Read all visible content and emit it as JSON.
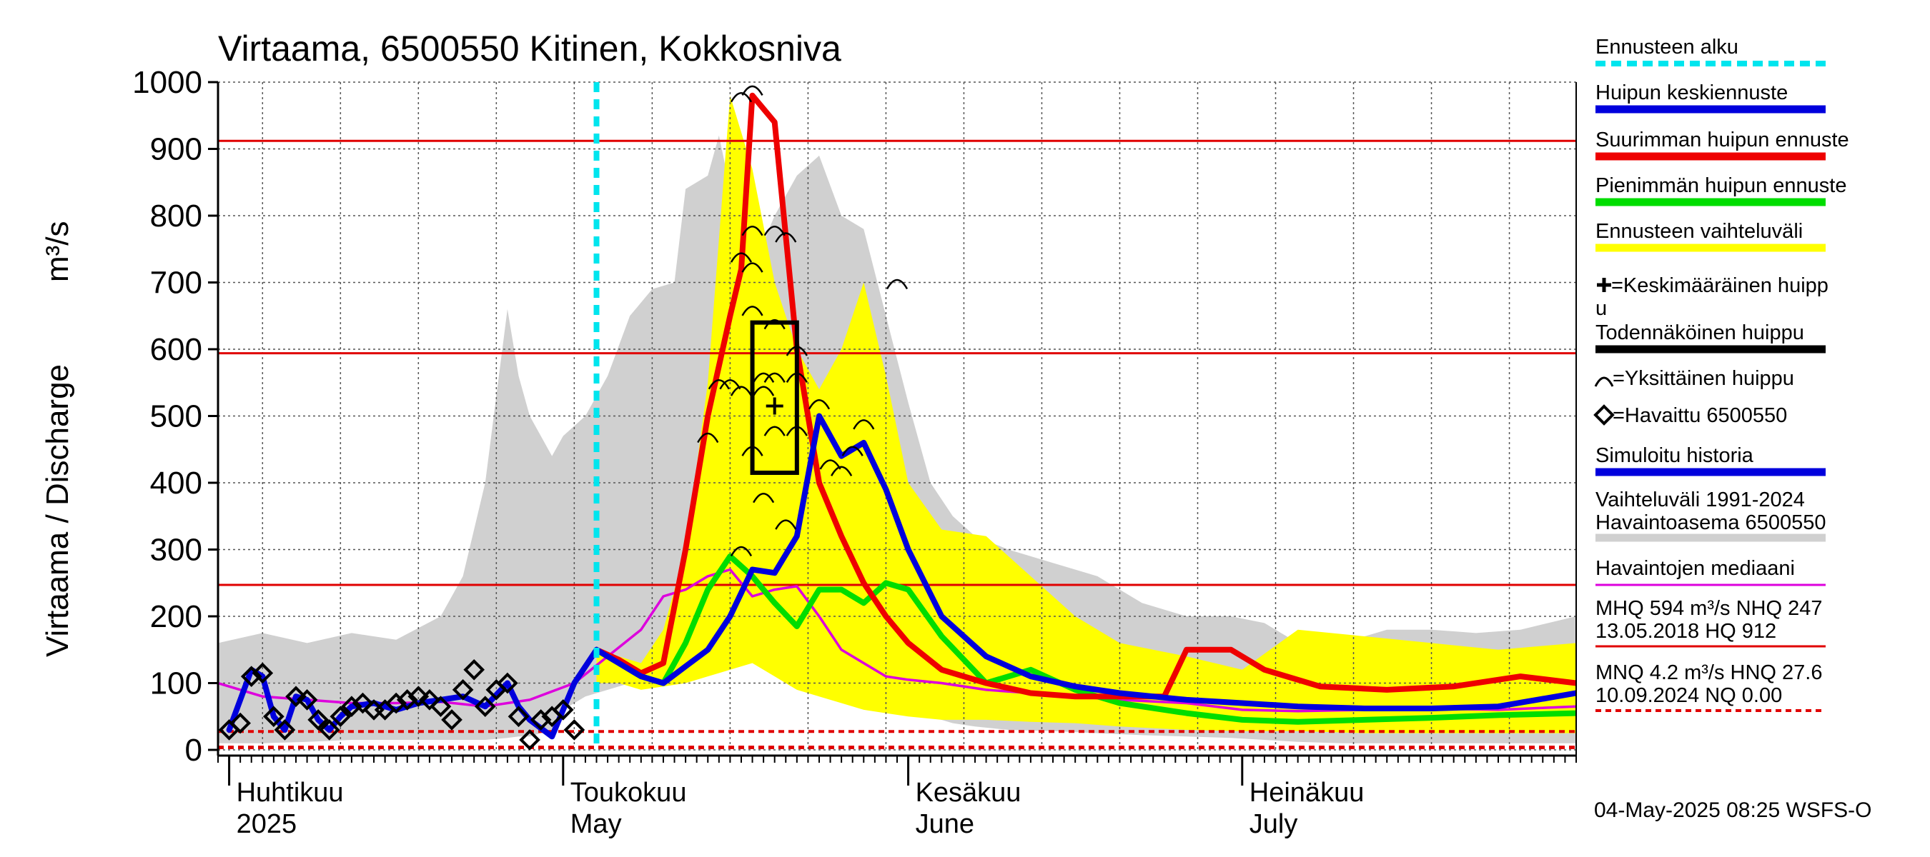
{
  "chart_data": {
    "type": "line",
    "title": "Virtaama, 6500550 Kitinen, Kokkosniva",
    "ylabel": "Virtaama / Discharge",
    "yunit": "m³/s",
    "ylim": [
      0,
      1000
    ],
    "yticks": [
      0,
      100,
      200,
      300,
      400,
      500,
      600,
      700,
      800,
      900,
      1000
    ],
    "xlim": [
      "2025-03-31",
      "2025-07-31"
    ],
    "grid": true,
    "legend_position": "right",
    "month_labels": [
      {
        "date": "2025-04-01",
        "fi": "Huhtikuu",
        "en": "2025"
      },
      {
        "date": "2025-05-01",
        "fi": "Toukokuu",
        "en": "May"
      },
      {
        "date": "2025-06-01",
        "fi": "Kesäkuu",
        "en": "June"
      },
      {
        "date": "2025-07-01",
        "fi": "Heinäkuu",
        "en": "July"
      }
    ],
    "forecast_start": "2025-05-04",
    "reference_lines": [
      {
        "label": "HQ",
        "value": 912,
        "style": "solid",
        "color": "#e00000"
      },
      {
        "label": "MHQ",
        "value": 594,
        "style": "solid",
        "color": "#e00000"
      },
      {
        "label": "NHQ",
        "value": 247,
        "style": "solid",
        "color": "#e00000"
      },
      {
        "label": "HNQ",
        "value": 27.6,
        "style": "dashed",
        "color": "#e00000"
      },
      {
        "label": "MNQ",
        "value": 4.2,
        "style": "dashed",
        "color": "#e00000"
      },
      {
        "label": "NQ",
        "value": 0,
        "style": "dashed",
        "color": "#e00000"
      }
    ],
    "history_band": {
      "name": "Vaihteluväli 1991-2024 Havaintoasema 6500550",
      "color": "#d0d0d0",
      "x": [
        "2025-03-31",
        "2025-04-04",
        "2025-04-08",
        "2025-04-12",
        "2025-04-16",
        "2025-04-20",
        "2025-04-22",
        "2025-04-24",
        "2025-04-26",
        "2025-04-27",
        "2025-04-28",
        "2025-04-30",
        "2025-05-01",
        "2025-05-03",
        "2025-05-05",
        "2025-05-07",
        "2025-05-09",
        "2025-05-11",
        "2025-05-12",
        "2025-05-14",
        "2025-05-15",
        "2025-05-17",
        "2025-05-18",
        "2025-05-20",
        "2025-05-22",
        "2025-05-24",
        "2025-05-26",
        "2025-05-28",
        "2025-05-30",
        "2025-06-01",
        "2025-06-03",
        "2025-06-05",
        "2025-06-07",
        "2025-06-10",
        "2025-06-14",
        "2025-06-18",
        "2025-06-22",
        "2025-06-26",
        "2025-06-30",
        "2025-07-03",
        "2025-07-06",
        "2025-07-10",
        "2025-07-14",
        "2025-07-18",
        "2025-07-22",
        "2025-07-26",
        "2025-07-31"
      ],
      "upper": [
        160,
        175,
        160,
        175,
        165,
        200,
        260,
        400,
        660,
        560,
        500,
        440,
        470,
        500,
        560,
        650,
        690,
        700,
        840,
        860,
        920,
        760,
        720,
        800,
        860,
        890,
        800,
        780,
        650,
        520,
        400,
        350,
        320,
        300,
        280,
        260,
        220,
        200,
        200,
        190,
        160,
        160,
        180,
        180,
        175,
        180,
        200
      ],
      "lower": [
        10,
        10,
        12,
        15,
        15,
        15,
        15,
        15,
        18,
        20,
        20,
        30,
        60,
        80,
        90,
        100,
        110,
        105,
        120,
        130,
        150,
        160,
        150,
        140,
        130,
        110,
        90,
        80,
        70,
        60,
        50,
        40,
        35,
        30,
        28,
        25,
        22,
        20,
        18,
        15,
        12,
        10,
        10,
        10,
        10,
        10,
        10
      ]
    },
    "forecast_band": {
      "name": "Ennusteen vaihteluväli",
      "color": "#ffff00",
      "x": [
        "2025-05-04",
        "2025-05-06",
        "2025-05-08",
        "2025-05-10",
        "2025-05-12",
        "2025-05-14",
        "2025-05-16",
        "2025-05-18",
        "2025-05-20",
        "2025-05-22",
        "2025-05-24",
        "2025-05-26",
        "2025-05-28",
        "2025-05-30",
        "2025-06-01",
        "2025-06-04",
        "2025-06-08",
        "2025-06-12",
        "2025-06-16",
        "2025-06-20",
        "2025-06-26",
        "2025-07-01",
        "2025-07-06",
        "2025-07-12",
        "2025-07-18",
        "2025-07-24",
        "2025-07-31"
      ],
      "upper": [
        150,
        140,
        130,
        180,
        300,
        550,
        980,
        870,
        700,
        600,
        540,
        600,
        700,
        560,
        400,
        330,
        320,
        260,
        200,
        160,
        140,
        120,
        180,
        170,
        160,
        150,
        160
      ],
      "lower": [
        100,
        100,
        90,
        95,
        100,
        110,
        120,
        130,
        110,
        90,
        80,
        70,
        60,
        55,
        50,
        45,
        45,
        42,
        40,
        35,
        30,
        28,
        28,
        25,
        25,
        25,
        25
      ]
    },
    "series": [
      {
        "name": "Huipun keskiennuste",
        "color": "#0000dd",
        "x": [
          "2025-05-04",
          "2025-05-06",
          "2025-05-08",
          "2025-05-10",
          "2025-05-12",
          "2025-05-14",
          "2025-05-16",
          "2025-05-18",
          "2025-05-20",
          "2025-05-22",
          "2025-05-24",
          "2025-05-26",
          "2025-05-28",
          "2025-05-30",
          "2025-06-01",
          "2025-06-04",
          "2025-06-08",
          "2025-06-12",
          "2025-06-16",
          "2025-06-20",
          "2025-06-26",
          "2025-07-01",
          "2025-07-06",
          "2025-07-12",
          "2025-07-18",
          "2025-07-24",
          "2025-07-31"
        ],
        "values": [
          150,
          130,
          110,
          100,
          125,
          150,
          200,
          270,
          265,
          320,
          500,
          440,
          460,
          390,
          300,
          200,
          140,
          110,
          95,
          85,
          75,
          70,
          65,
          62,
          62,
          65,
          85
        ]
      },
      {
        "name": "Suurimman huipun ennuste",
        "color": "#ee0000",
        "x": [
          "2025-05-04",
          "2025-05-06",
          "2025-05-08",
          "2025-05-10",
          "2025-05-12",
          "2025-05-14",
          "2025-05-16",
          "2025-05-17",
          "2025-05-18",
          "2025-05-20",
          "2025-05-22",
          "2025-05-24",
          "2025-05-26",
          "2025-05-28",
          "2025-05-30",
          "2025-06-01",
          "2025-06-04",
          "2025-06-08",
          "2025-06-12",
          "2025-06-16",
          "2025-06-20",
          "2025-06-24",
          "2025-06-26",
          "2025-06-30",
          "2025-07-03",
          "2025-07-08",
          "2025-07-14",
          "2025-07-20",
          "2025-07-26",
          "2025-07-31"
        ],
        "values": [
          150,
          135,
          115,
          130,
          300,
          500,
          650,
          720,
          980,
          940,
          600,
          400,
          320,
          250,
          200,
          160,
          120,
          100,
          85,
          80,
          80,
          80,
          150,
          150,
          120,
          95,
          90,
          95,
          110,
          100
        ]
      },
      {
        "name": "Pienimmän huipun ennuste",
        "color": "#00dd00",
        "x": [
          "2025-05-04",
          "2025-05-06",
          "2025-05-08",
          "2025-05-10",
          "2025-05-12",
          "2025-05-14",
          "2025-05-16",
          "2025-05-18",
          "2025-05-20",
          "2025-05-22",
          "2025-05-24",
          "2025-05-26",
          "2025-05-28",
          "2025-05-30",
          "2025-06-01",
          "2025-06-04",
          "2025-06-08",
          "2025-06-12",
          "2025-06-16",
          "2025-06-20",
          "2025-06-26",
          "2025-07-01",
          "2025-07-06",
          "2025-07-12",
          "2025-07-18",
          "2025-07-24",
          "2025-07-31"
        ],
        "values": [
          150,
          130,
          110,
          100,
          160,
          240,
          290,
          260,
          220,
          185,
          240,
          240,
          220,
          250,
          240,
          170,
          100,
          120,
          90,
          70,
          55,
          45,
          42,
          45,
          48,
          52,
          55
        ]
      },
      {
        "name": "Havaintojen mediaani",
        "color": "#dd00dd",
        "x": [
          "2025-03-31",
          "2025-04-04",
          "2025-04-08",
          "2025-04-12",
          "2025-04-16",
          "2025-04-20",
          "2025-04-24",
          "2025-04-28",
          "2025-05-02",
          "2025-05-05",
          "2025-05-08",
          "2025-05-10",
          "2025-05-12",
          "2025-05-14",
          "2025-05-16",
          "2025-05-18",
          "2025-05-20",
          "2025-05-22",
          "2025-05-24",
          "2025-05-26",
          "2025-05-28",
          "2025-05-30",
          "2025-06-01",
          "2025-06-04",
          "2025-06-08",
          "2025-06-12",
          "2025-06-16",
          "2025-06-20",
          "2025-06-26",
          "2025-07-01",
          "2025-07-06",
          "2025-07-12",
          "2025-07-18",
          "2025-07-24",
          "2025-07-31"
        ],
        "values": [
          100,
          80,
          75,
          70,
          70,
          72,
          65,
          75,
          100,
          140,
          180,
          230,
          240,
          260,
          270,
          230,
          240,
          245,
          200,
          150,
          130,
          110,
          105,
          100,
          90,
          85,
          80,
          75,
          70,
          60,
          58,
          60,
          62,
          60,
          65
        ]
      },
      {
        "name": "Simuloitu historia",
        "color": "#0000dd",
        "x": [
          "2025-04-01",
          "2025-04-03",
          "2025-04-04",
          "2025-04-05",
          "2025-04-06",
          "2025-04-07",
          "2025-04-08",
          "2025-04-09",
          "2025-04-10",
          "2025-04-11",
          "2025-04-12",
          "2025-04-14",
          "2025-04-16",
          "2025-04-18",
          "2025-04-20",
          "2025-04-22",
          "2025-04-24",
          "2025-04-26",
          "2025-04-27",
          "2025-04-28",
          "2025-04-30",
          "2025-05-02",
          "2025-05-04"
        ],
        "values": [
          30,
          120,
          110,
          50,
          30,
          80,
          75,
          45,
          30,
          50,
          65,
          70,
          60,
          70,
          75,
          80,
          65,
          100,
          65,
          45,
          20,
          100,
          150
        ]
      }
    ],
    "observed": {
      "name": "Havaittu 6500550",
      "x": [
        "2025-04-01",
        "2025-04-02",
        "2025-04-03",
        "2025-04-04",
        "2025-04-05",
        "2025-04-06",
        "2025-04-07",
        "2025-04-08",
        "2025-04-09",
        "2025-04-10",
        "2025-04-11",
        "2025-04-12",
        "2025-04-13",
        "2025-04-14",
        "2025-04-15",
        "2025-04-16",
        "2025-04-17",
        "2025-04-18",
        "2025-04-19",
        "2025-04-20",
        "2025-04-21",
        "2025-04-22",
        "2025-04-23",
        "2025-04-24",
        "2025-04-25",
        "2025-04-26",
        "2025-04-27",
        "2025-04-28",
        "2025-04-29",
        "2025-04-30",
        "2025-05-01",
        "2025-05-02"
      ],
      "values": [
        30,
        40,
        110,
        115,
        50,
        30,
        80,
        75,
        45,
        30,
        50,
        65,
        70,
        60,
        60,
        70,
        75,
        80,
        75,
        65,
        45,
        90,
        120,
        65,
        90,
        100,
        50,
        15,
        45,
        50,
        60,
        30
      ]
    },
    "single_peaks": {
      "name": "Yksittäinen huippu",
      "x": [
        "2025-05-14",
        "2025-05-15",
        "2025-05-16",
        "2025-05-17",
        "2025-05-17",
        "2025-05-17",
        "2025-05-17",
        "2025-05-18",
        "2025-05-18",
        "2025-05-18",
        "2025-05-18",
        "2025-05-18",
        "2025-05-19",
        "2025-05-19",
        "2025-05-19",
        "2025-05-20",
        "2025-05-20",
        "2025-05-20",
        "2025-05-20",
        "2025-05-21",
        "2025-05-21",
        "2025-05-22",
        "2025-05-22",
        "2025-05-22",
        "2025-05-24",
        "2025-05-25",
        "2025-05-26",
        "2025-05-27",
        "2025-05-28",
        "2025-05-31"
      ],
      "values": [
        470,
        550,
        550,
        980,
        740,
        540,
        300,
        990,
        780,
        725,
        660,
        450,
        380,
        540,
        560,
        780,
        640,
        560,
        480,
        770,
        340,
        560,
        600,
        480,
        520,
        430,
        420,
        450,
        490,
        700
      ]
    },
    "mean_peak": {
      "name": "Keskimääräinen huippu",
      "x": "2025-05-20",
      "value": 515
    },
    "probable_peak_box": {
      "name": "Todennäköinen huippu",
      "x_start": "2025-05-18",
      "x_end": "2025-05-22",
      "y_low": 415,
      "y_high": 640
    },
    "legend": [
      {
        "label": "Ennusteen alku",
        "kind": "dashed-line",
        "color": "#00e5ee"
      },
      {
        "label": "Huipun keskiennuste",
        "kind": "line",
        "color": "#0000dd"
      },
      {
        "label": "Suurimman huipun ennuste",
        "kind": "line",
        "color": "#ee0000"
      },
      {
        "label": "Pienimmän huipun ennuste",
        "kind": "line",
        "color": "#00dd00"
      },
      {
        "label": "Ennusteen vaihteluväli",
        "kind": "line",
        "color": "#ffff00"
      },
      {
        "label": "=Keskimääräinen huipp",
        "label2": "u",
        "kind": "plus",
        "color": "#000000"
      },
      {
        "label": "Todennäköinen huippu",
        "kind": "line",
        "color": "#000000"
      },
      {
        "label": "=Yksittäinen huippu",
        "kind": "arc",
        "color": "#000000"
      },
      {
        "label": "=Havaittu 6500550",
        "kind": "diamond",
        "color": "#000000"
      },
      {
        "label": "Simuloitu historia",
        "kind": "line",
        "color": "#0000dd"
      },
      {
        "label": "Vaihteluväli 1991-2024",
        "label2": " Havaintoasema 6500550",
        "kind": "line",
        "color": "#d0d0d0"
      },
      {
        "label": "Havaintojen mediaani",
        "kind": "line-thin",
        "color": "#dd00dd"
      },
      {
        "label": "MHQ  594 m³/s NHQ  247",
        "label2": "13.05.2018 HQ  912",
        "kind": "line-thin",
        "color": "#e00000"
      },
      {
        "label": "MNQ  4.2 m³/s HNQ 27.6",
        "label2": "10.09.2024 NQ 0.00",
        "kind": "dashed-thin",
        "color": "#e00000"
      }
    ],
    "timestamp": "04-May-2025 08:25 WSFS-O"
  }
}
